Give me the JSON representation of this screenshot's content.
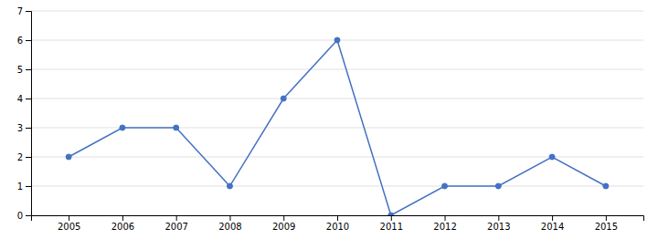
{
  "chart_data": {
    "type": "line",
    "x": [
      2005,
      2006,
      2007,
      2008,
      2009,
      2010,
      2011,
      2012,
      2013,
      2014,
      2015
    ],
    "values": [
      2,
      3,
      3,
      1,
      4,
      6,
      0,
      1,
      1,
      2,
      1
    ],
    "color": "#4472C4",
    "marker": "circle",
    "xlim": [
      2004.3,
      2015.7
    ],
    "xticks": [
      2005,
      2006,
      2007,
      2008,
      2009,
      2010,
      2011,
      2012,
      2013,
      2014,
      2015
    ],
    "ylim": [
      0,
      7
    ],
    "yticks": [
      0,
      1,
      2,
      3,
      4,
      5,
      6,
      7
    ],
    "grid": true
  }
}
